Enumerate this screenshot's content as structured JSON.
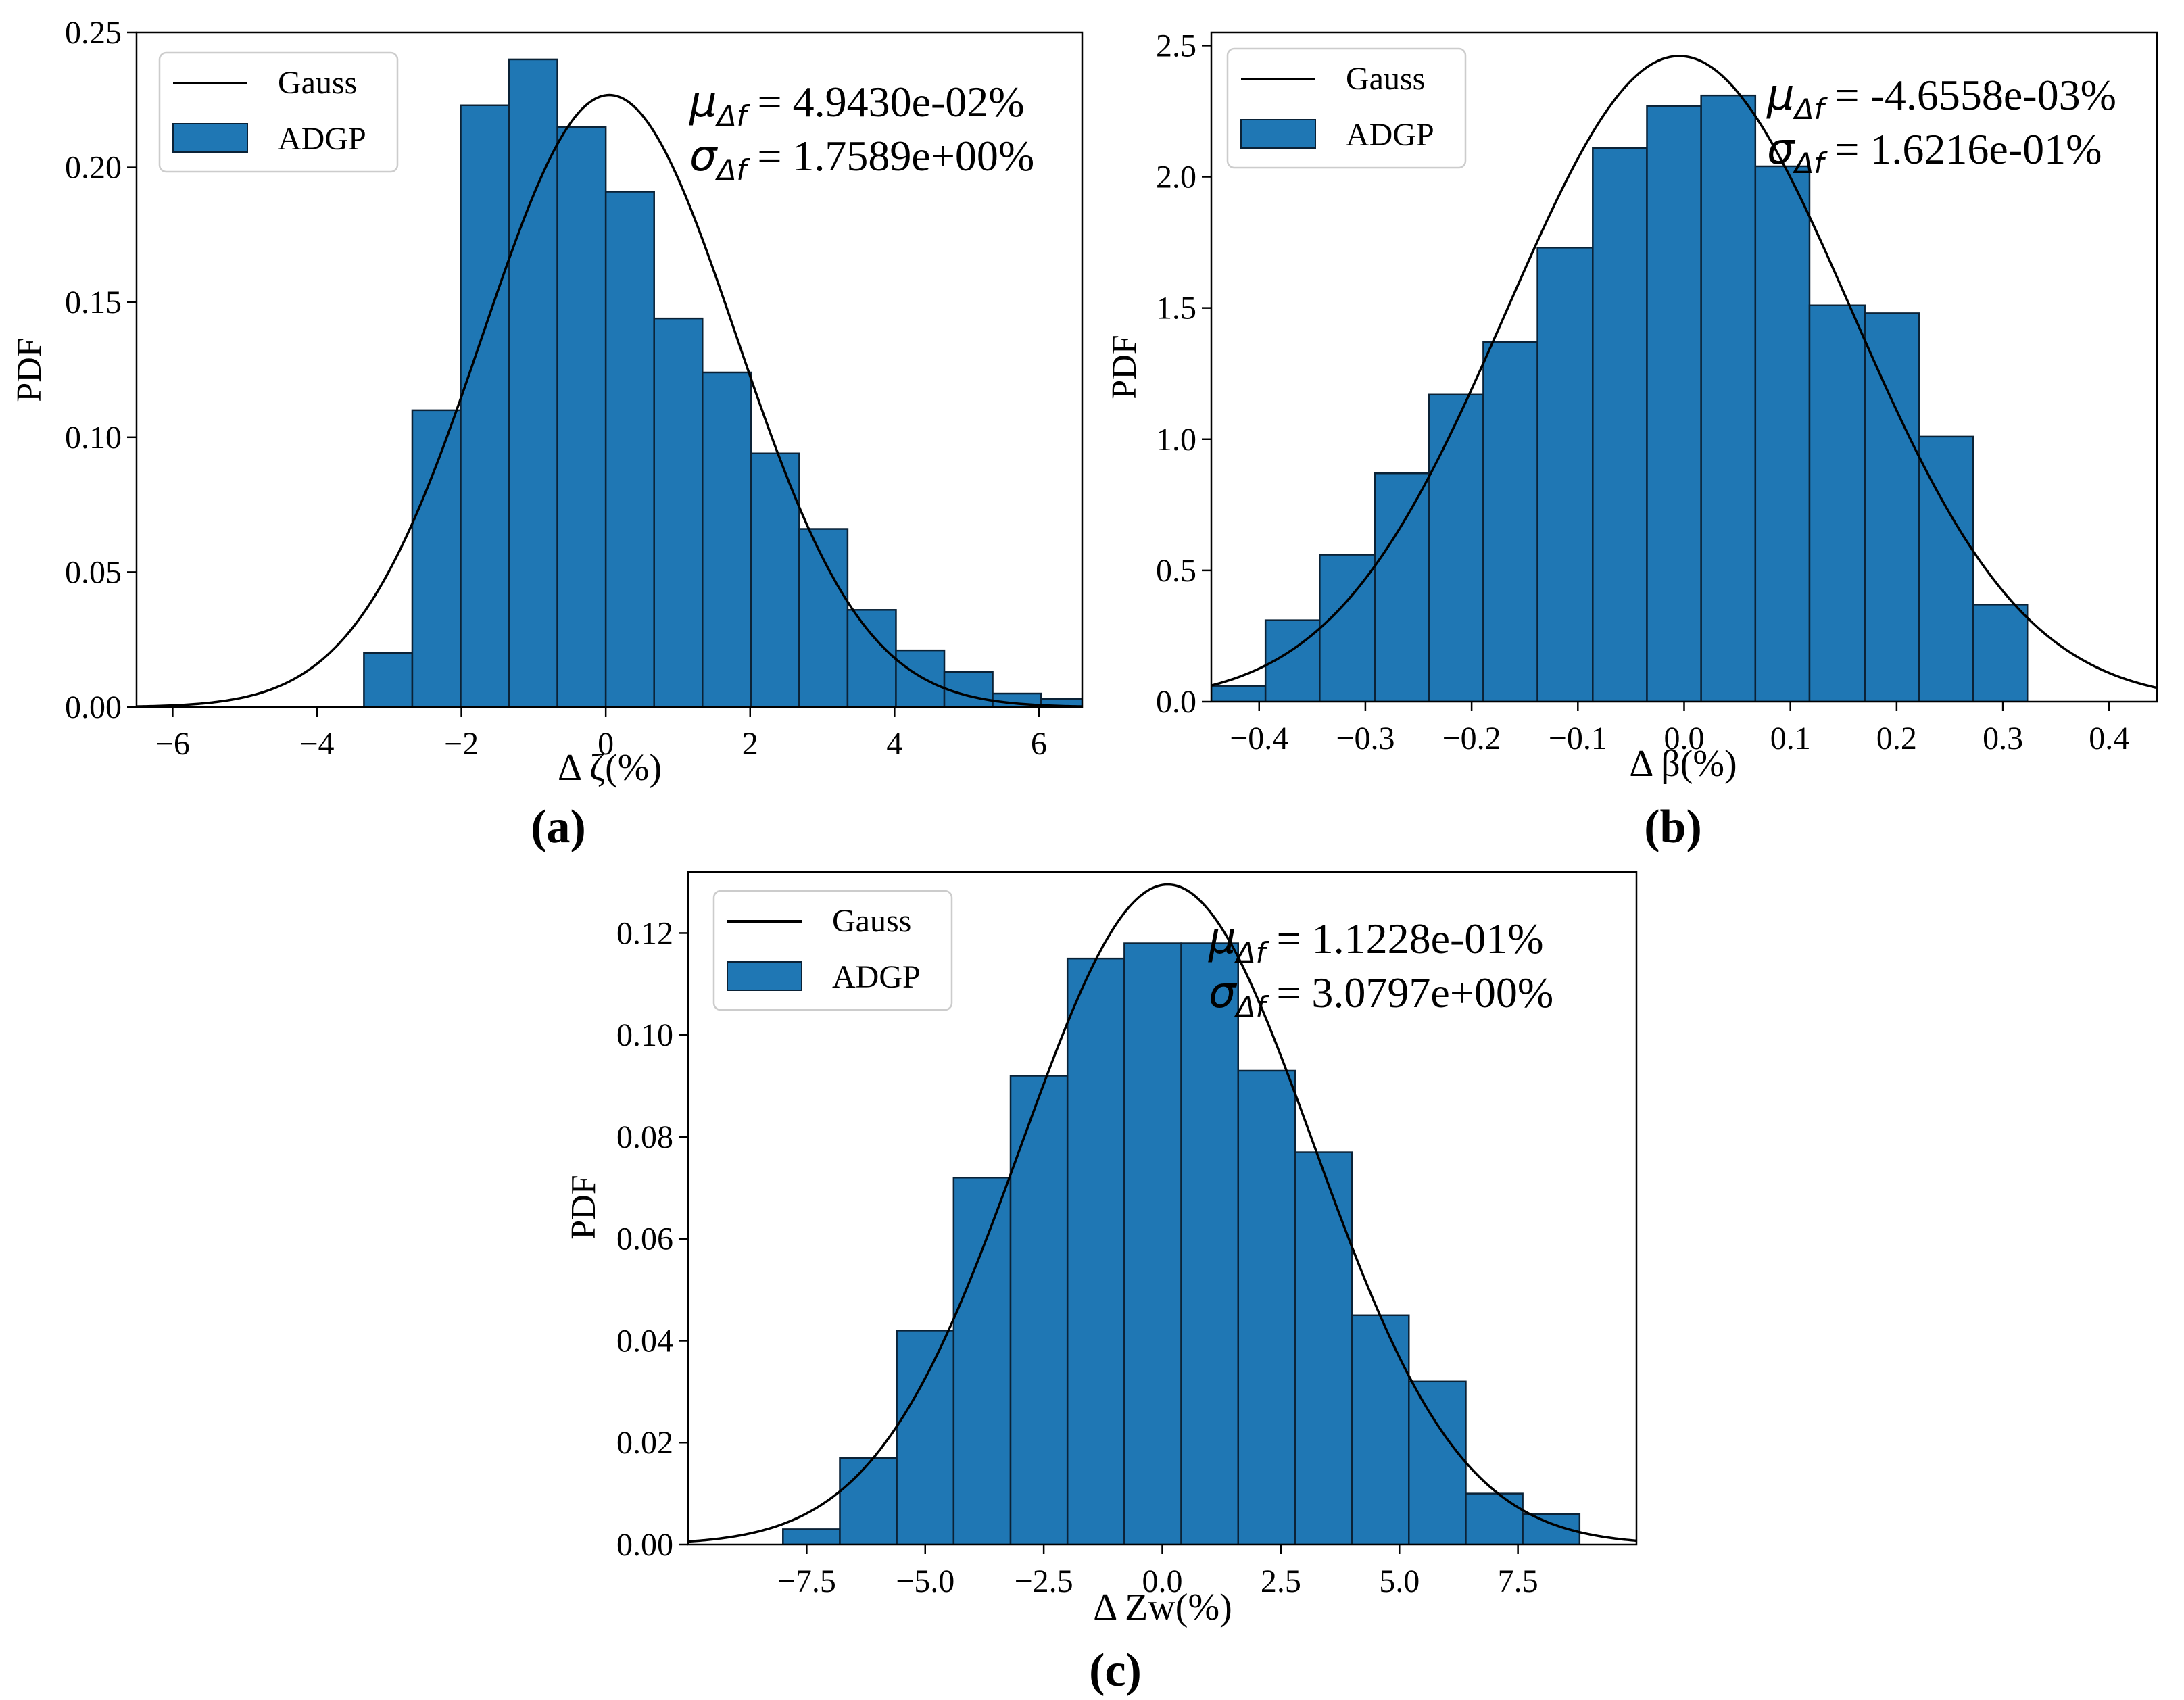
{
  "figure": {
    "panels": [
      "(a)",
      "(b)",
      "(c)"
    ]
  },
  "colors": {
    "bar_fill": "#1f77b4",
    "bar_edge": "#0b2236",
    "curve": "#000000"
  },
  "chart_data": [
    {
      "type": "bar",
      "panel": "(a)",
      "xlabel": "Δ ζ(%)",
      "ylabel": "PDF",
      "xlim": [
        -6.5,
        6.6
      ],
      "ylim": [
        0,
        0.25
      ],
      "xticks": [
        -6,
        -4,
        -2,
        0,
        2,
        4,
        6
      ],
      "xtick_labels": [
        "−6",
        "−4",
        "−2",
        "0",
        "2",
        "4",
        "6"
      ],
      "yticks": [
        0,
        0.05,
        0.1,
        0.15,
        0.2,
        0.25
      ],
      "ytick_labels": [
        "0.00",
        "0.05",
        "0.10",
        "0.15",
        "0.20",
        "0.25"
      ],
      "bin_edges": [
        -3.35,
        -2.68,
        -2.01,
        -1.34,
        -0.67,
        0.0,
        0.67,
        1.34,
        2.01,
        2.68,
        3.35,
        4.02,
        4.69,
        5.36,
        6.03,
        6.7
      ],
      "values": [
        0.02,
        0.11,
        0.223,
        0.24,
        0.215,
        0.191,
        0.144,
        0.124,
        0.094,
        0.066,
        0.036,
        0.021,
        0.013,
        0.005,
        0.003
      ],
      "gauss": {
        "mu": 0.0494,
        "sigma": 1.7589
      },
      "legend": [
        "Gauss",
        "ADGP"
      ],
      "legend_position": "upper-left",
      "annotation": {
        "mu_prefix": "μ",
        "sigma_prefix": "σ",
        "sub": "Δf",
        "mu_value": " = 4.9430e-02%",
        "sigma_value": " = 1.7589e+00%"
      }
    },
    {
      "type": "bar",
      "panel": "(b)",
      "xlabel": "Δ β(%)",
      "ylabel": "PDF",
      "xlim": [
        -0.445,
        0.445
      ],
      "ylim": [
        0,
        2.55
      ],
      "xticks": [
        -0.4,
        -0.3,
        -0.2,
        -0.1,
        0.0,
        0.1,
        0.2,
        0.3,
        0.4
      ],
      "xtick_labels": [
        "−0.4",
        "−0.3",
        "−0.2",
        "−0.1",
        "0.0",
        "0.1",
        "0.2",
        "0.3",
        "0.4"
      ],
      "yticks": [
        0,
        0.5,
        1.0,
        1.5,
        2.0,
        2.5
      ],
      "ytick_labels": [
        "0.0",
        "0.5",
        "1.0",
        "1.5",
        "2.0",
        "2.5"
      ],
      "bin_edges": [
        -0.445,
        -0.394,
        -0.343,
        -0.291,
        -0.24,
        -0.189,
        -0.138,
        -0.086,
        -0.035,
        0.016,
        0.067,
        0.118,
        0.17,
        0.221,
        0.272,
        0.323
      ],
      "values": [
        0.06,
        0.31,
        0.56,
        0.87,
        1.17,
        1.37,
        1.73,
        2.11,
        2.27,
        2.31,
        2.04,
        1.51,
        1.48,
        1.01,
        0.37
      ],
      "gauss": {
        "mu": -0.00466,
        "sigma": 0.16216
      },
      "legend": [
        "Gauss",
        "ADGP"
      ],
      "legend_position": "upper-left",
      "annotation": {
        "mu_prefix": "μ",
        "sigma_prefix": "σ",
        "sub": "Δf",
        "mu_value": " = -4.6558e-03%",
        "sigma_value": " = 1.6216e-01%"
      }
    },
    {
      "type": "bar",
      "panel": "(c)",
      "xlabel": "Δ Zw(%)",
      "ylabel": "PDF",
      "xlim": [
        -10.0,
        10.0
      ],
      "ylim": [
        0,
        0.132
      ],
      "xticks": [
        -7.5,
        -5.0,
        -2.5,
        0.0,
        2.5,
        5.0,
        7.5
      ],
      "xtick_labels": [
        "−7.5",
        "−5.0",
        "−2.5",
        "0.0",
        "2.5",
        "5.0",
        "7.5"
      ],
      "yticks": [
        0,
        0.02,
        0.04,
        0.06,
        0.08,
        0.1,
        0.12
      ],
      "ytick_labels": [
        "0.00",
        "0.02",
        "0.04",
        "0.06",
        "0.08",
        "0.10",
        "0.12"
      ],
      "bin_edges": [
        -8.0,
        -6.8,
        -5.6,
        -4.4,
        -3.2,
        -2.0,
        -0.8,
        0.4,
        1.6,
        2.8,
        4.0,
        5.2,
        6.4,
        7.6,
        8.8
      ],
      "values": [
        0.003,
        0.017,
        0.042,
        0.072,
        0.092,
        0.115,
        0.118,
        0.118,
        0.093,
        0.077,
        0.045,
        0.032,
        0.01,
        0.006
      ],
      "gauss": {
        "mu": 0.1123,
        "sigma": 3.0797
      },
      "legend": [
        "Gauss",
        "ADGP"
      ],
      "legend_position": "upper-left",
      "annotation": {
        "mu_prefix": "μ",
        "sigma_prefix": "σ",
        "sub": "Δf",
        "mu_value": " = 1.1228e-01%",
        "sigma_value": " = 3.0797e+00%"
      }
    }
  ]
}
